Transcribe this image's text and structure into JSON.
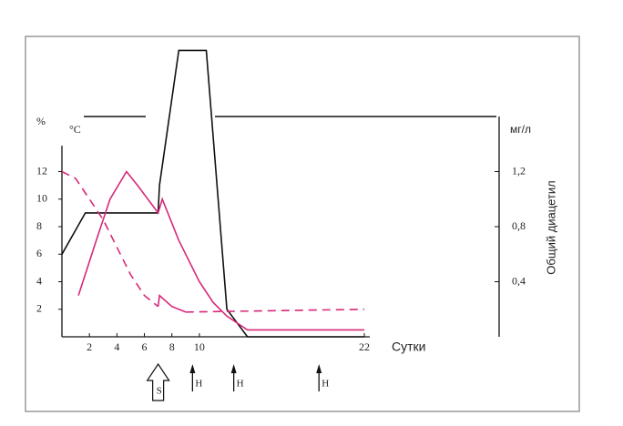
{
  "chart_data": {
    "type": "line",
    "y_label": "% ",
    "y_unit": "°C",
    "y2_unit": "мг/л",
    "y2_label": "Общий  диацетил",
    "x_label": "Сутки",
    "xlim": [
      0,
      22
    ],
    "xticks": [
      2,
      4,
      6,
      8,
      10,
      22
    ],
    "ylim": [
      0,
      16
    ],
    "yticks": [
      2,
      4,
      6,
      8,
      10,
      12
    ],
    "y2lim": [
      0,
      1.6
    ],
    "y2ticks": [
      {
        "value": 0.4,
        "label": "0,4"
      },
      {
        "value": 0.8,
        "label": "0,8"
      },
      {
        "value": 1.2,
        "label": "1,2"
      }
    ],
    "series": [
      {
        "color": "#111111",
        "dash": false,
        "x": [
          0,
          1.7,
          7,
          7.1,
          8.5,
          10.5,
          12,
          13.5,
          22
        ],
        "values": [
          6,
          9,
          9,
          11,
          20.8,
          20.8,
          2,
          0,
          0
        ]
      },
      {
        "color": "#d6287a",
        "dash": false,
        "x": [
          1.2,
          2.5,
          3.5,
          4.7,
          5.5,
          7,
          7.3,
          8.5,
          10,
          11,
          12,
          13.5,
          22
        ],
        "values": [
          3,
          7,
          10,
          12,
          11,
          9,
          10,
          7,
          4,
          2.5,
          1.5,
          0.5,
          0.5
        ]
      },
      {
        "color": "#d6287a",
        "dash": true,
        "x": [
          0,
          1,
          2,
          3,
          4,
          5,
          6,
          7,
          8,
          9,
          22
        ],
        "values": [
          12,
          11.5,
          10,
          8.5,
          6.5,
          4.5,
          3,
          2.2,
          null,
          1.8,
          2
        ]
      },
      {
        "color": "#d6287a",
        "dash": false,
        "x": [
          7,
          7.1,
          8,
          9
        ],
        "values": [
          2.2,
          3,
          2.2,
          1.8
        ]
      }
    ],
    "annotations": [
      {
        "text": "S",
        "x": 7
      },
      {
        "text": "H",
        "x": 9.5
      },
      {
        "text": "H",
        "x": 12.5
      },
      {
        "text": "H",
        "x": 18.7
      }
    ]
  }
}
